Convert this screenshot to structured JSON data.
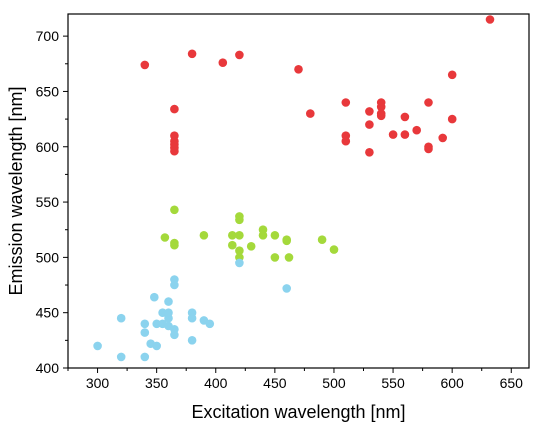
{
  "chart_data": {
    "type": "scatter",
    "xlabel": "Excitation wavelength [nm]",
    "ylabel": "Emission wavelength [nm]",
    "xlim": [
      275,
      665
    ],
    "ylim": [
      400,
      720
    ],
    "xticks": [
      300,
      350,
      400,
      450,
      500,
      550,
      600,
      650
    ],
    "yticks": [
      400,
      450,
      500,
      550,
      600,
      650,
      700
    ],
    "xtick_labels": [
      "300",
      "350",
      "400",
      "450",
      "500",
      "550",
      "600",
      "650"
    ],
    "ytick_labels": [
      "400",
      "450",
      "500",
      "550",
      "600",
      "650",
      "700"
    ],
    "grid": false,
    "colors": {
      "red": "#e8383b",
      "green": "#a4d93b",
      "blue": "#8bd3ee"
    },
    "series": [
      {
        "color": "#e8383b",
        "points": [
          [
            340,
            674
          ],
          [
            380,
            684
          ],
          [
            406,
            676
          ],
          [
            420,
            683
          ],
          [
            470,
            670
          ],
          [
            632,
            715
          ],
          [
            365,
            634
          ],
          [
            365,
            610
          ],
          [
            365,
            605
          ],
          [
            365,
            602
          ],
          [
            365,
            599
          ],
          [
            365,
            596
          ],
          [
            480,
            630
          ],
          [
            510,
            640
          ],
          [
            510,
            610
          ],
          [
            510,
            605
          ],
          [
            530,
            632
          ],
          [
            530,
            620
          ],
          [
            530,
            595
          ],
          [
            540,
            640
          ],
          [
            540,
            636
          ],
          [
            540,
            630
          ],
          [
            540,
            628
          ],
          [
            550,
            611
          ],
          [
            560,
            627
          ],
          [
            560,
            611
          ],
          [
            570,
            615
          ],
          [
            580,
            640
          ],
          [
            580,
            600
          ],
          [
            580,
            598
          ],
          [
            592,
            608
          ],
          [
            600,
            665
          ],
          [
            600,
            625
          ]
        ]
      },
      {
        "color": "#a4d93b",
        "points": [
          [
            357,
            518
          ],
          [
            365,
            543
          ],
          [
            365,
            513
          ],
          [
            365,
            511
          ],
          [
            390,
            520
          ],
          [
            414,
            520
          ],
          [
            414,
            511
          ],
          [
            420,
            537
          ],
          [
            420,
            534
          ],
          [
            420,
            520
          ],
          [
            420,
            506
          ],
          [
            420,
            500
          ],
          [
            430,
            510
          ],
          [
            440,
            525
          ],
          [
            440,
            520
          ],
          [
            450,
            520
          ],
          [
            450,
            500
          ],
          [
            460,
            516
          ],
          [
            460,
            515
          ],
          [
            462,
            500
          ],
          [
            490,
            516
          ],
          [
            500,
            507
          ]
        ]
      },
      {
        "color": "#8bd3ee",
        "points": [
          [
            300,
            420
          ],
          [
            320,
            445
          ],
          [
            320,
            410
          ],
          [
            340,
            440
          ],
          [
            340,
            432
          ],
          [
            340,
            410
          ],
          [
            345,
            422
          ],
          [
            348,
            464
          ],
          [
            350,
            420
          ],
          [
            350,
            440
          ],
          [
            355,
            440
          ],
          [
            355,
            450
          ],
          [
            360,
            438
          ],
          [
            360,
            460
          ],
          [
            360,
            450
          ],
          [
            360,
            445
          ],
          [
            365,
            480
          ],
          [
            365,
            475
          ],
          [
            365,
            435
          ],
          [
            365,
            430
          ],
          [
            380,
            450
          ],
          [
            380,
            445
          ],
          [
            380,
            425
          ],
          [
            390,
            443
          ],
          [
            395,
            440
          ],
          [
            420,
            495
          ],
          [
            460,
            472
          ]
        ]
      }
    ]
  }
}
